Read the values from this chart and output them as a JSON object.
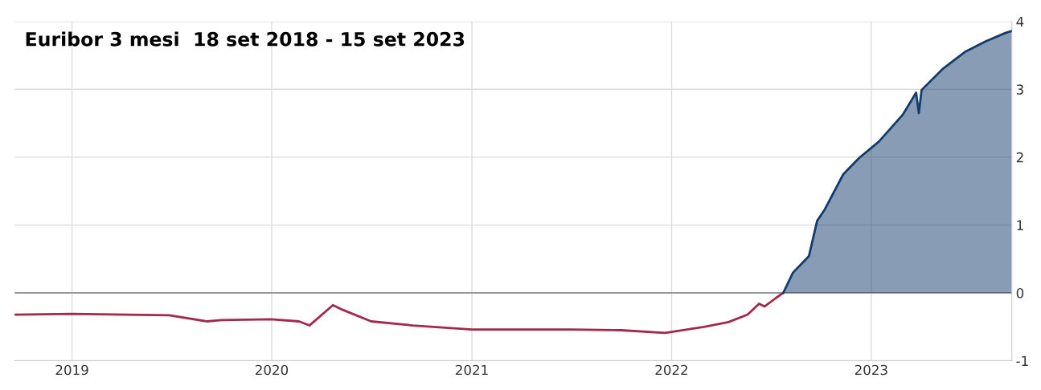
{
  "chart_data": {
    "type": "line",
    "title": "Euribor 3 mesi  18 set 2018 - 15 set 2023",
    "xlim": [
      "2018-09-18",
      "2023-09-15"
    ],
    "ylim": [
      -1,
      4
    ],
    "yticks": [
      -1,
      0,
      1,
      2,
      3,
      4
    ],
    "xticks": [
      {
        "value": "2019-01-01",
        "label": "2019"
      },
      {
        "value": "2020-01-01",
        "label": "2020"
      },
      {
        "value": "2021-01-01",
        "label": "2021"
      },
      {
        "value": "2022-01-01",
        "label": "2022"
      },
      {
        "value": "2023-01-01",
        "label": "2023"
      }
    ],
    "grid": true,
    "ref_lines": [
      {
        "axis": "y",
        "value": 0,
        "color": "#808080"
      }
    ],
    "series": [
      {
        "color": "#a3284c",
        "x": [
          "2018-09-18",
          "2019-01-01",
          "2019-06-28",
          "2019-09-05",
          "2019-10-01",
          "2019-12-31",
          "2020-02-20",
          "2020-03-10",
          "2020-04-22",
          "2020-05-10",
          "2020-07-01",
          "2020-09-15",
          "2021-01-01",
          "2021-07-01",
          "2021-10-01",
          "2021-12-20",
          "2022-03-01",
          "2022-04-15",
          "2022-05-20",
          "2022-06-10",
          "2022-06-20",
          "2022-07-10",
          "2022-07-24"
        ],
        "values": [
          -0.32,
          -0.31,
          -0.33,
          -0.42,
          -0.4,
          -0.39,
          -0.42,
          -0.48,
          -0.18,
          -0.25,
          -0.42,
          -0.48,
          -0.54,
          -0.54,
          -0.55,
          -0.59,
          -0.5,
          -0.43,
          -0.32,
          -0.16,
          -0.2,
          -0.08,
          0
        ]
      },
      {
        "type": "area",
        "color": "#123c6b",
        "x": [
          "2022-07-24",
          "2022-08-11",
          "2022-09-09",
          "2022-09-24",
          "2022-10-08",
          "2022-11-11",
          "2022-12-10",
          "2023-01-15",
          "2023-02-28",
          "2023-03-24",
          "2023-03-29",
          "2023-04-03",
          "2023-05-13",
          "2023-06-21",
          "2023-07-30",
          "2023-09-03",
          "2023-09-15"
        ],
        "values": [
          0,
          0.3,
          0.54,
          1.06,
          1.23,
          1.75,
          1.99,
          2.23,
          2.63,
          2.95,
          2.65,
          2.99,
          3.31,
          3.55,
          3.71,
          3.83,
          3.86
        ]
      }
    ]
  }
}
